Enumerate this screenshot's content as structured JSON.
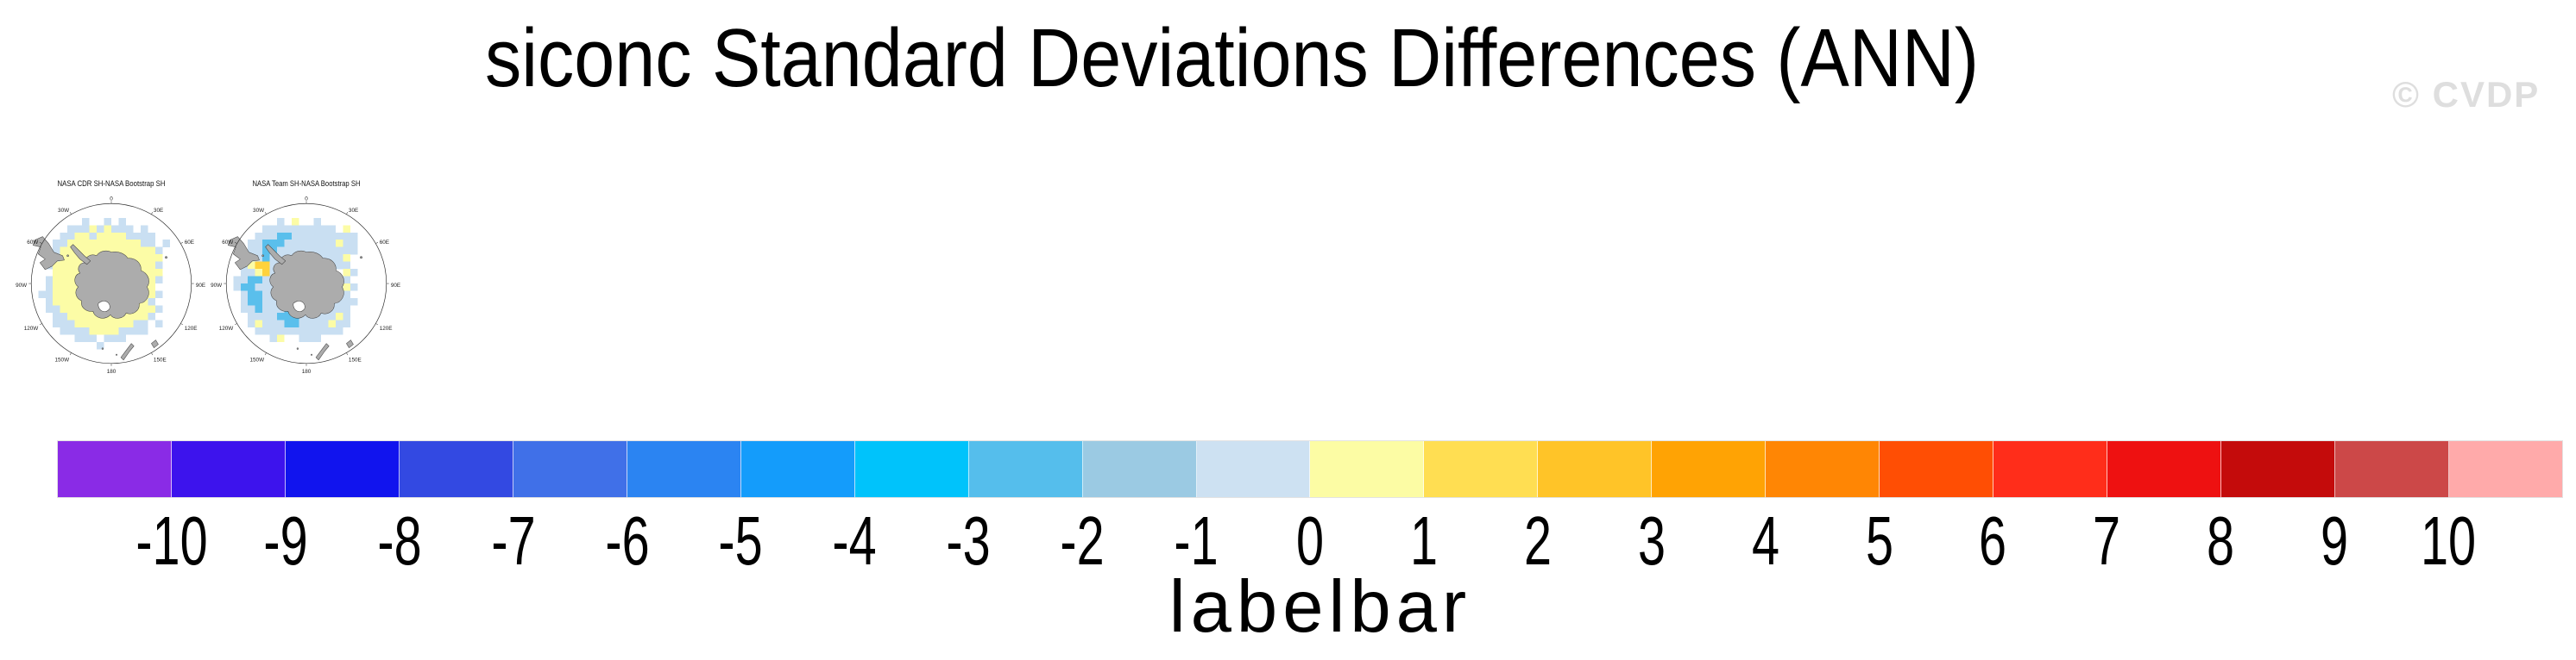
{
  "page": {
    "title": "siconc Standard Deviations Differences (ANN)",
    "watermark": "© CVDP",
    "background": "#ffffff"
  },
  "maps": [
    {
      "title": "NASA CDR SH-NASA Bootstrap SH",
      "lon_labels": [
        "0",
        "30E",
        "60E",
        "90E",
        "120E",
        "150E",
        "180",
        "150W",
        "120W",
        "90W",
        "60W",
        "30W"
      ],
      "grid": [
        "....................",
        "......p..p.p........",
        "....pppypyppp.p.....",
        "...ppyypyyyypppp....",
        "..ppyyyyyyyyyypp.p..",
        "..pyyyyyyyyyyyyyp...",
        ".ppyyyyyyyyyyyyyy...",
        ".pyyyy.yyyyyyyyyp...",
        "..yyyyyyyyyyyyyyy...",
        ".pyyyyyyyyyyyyyyp...",
        ".pyyyyyyyyyyyyyy....",
        "ppyyyyyyyyyyyyyyp...",
        ".pyyyyyyyyyyyyyp....",
        ".ppyyyyyyyyyyyyyp...",
        "..ppyyyyyyyyyyyp....",
        "..pppyyyyyyyypp.p...",
        "...ppppyyyypppp.....",
        ".....ppp.ppp........",
        "........p...........",
        "...................."
      ]
    },
    {
      "title": "NASA Team SH-NASA Bootstrap SH",
      "lon_labels": [
        "0",
        "30E",
        "60E",
        "90E",
        "120E",
        "150E",
        "180",
        "150W",
        "120W",
        "90W",
        "60W",
        "30W"
      ],
      "grid": [
        "....................",
        "......p.y..p........",
        "....pppppppppp.y....",
        "...pppmmppppppppp...",
        "..ppmmmpppppppypp...",
        "..ppmmppppppppppp...",
        ".pppmppppppppppy....",
        ".pyggppppppppppp....",
        ".ppygppppppppp.yp...",
        "ppmmpppppppppppp....",
        "pmmppppppppppppyp...",
        ".pmmpppppppppppp....",
        ".pmmppppppppppppp...",
        ".ppmpppmmppppppp....",
        "..ppppmmmpppppyp....",
        "..pypppmmppppypp....",
        "...pppppppppppp.....",
        ".....py..ppp........",
        "....................",
        "...................."
      ]
    }
  ],
  "map_style": {
    "land_color": "#acacac",
    "coast_color": "#3c3c3c",
    "circle_color": "#333333",
    "label_color": "#222222",
    "cell_colors": {
      "p": "#C9DFF2",
      "m": "#5ABFEC",
      "y": "#FCFCA6",
      "g": "#FFD23C",
      "o": "#FFA304"
    }
  },
  "colorbar": {
    "label": "labelbar",
    "ticks": [
      "-10",
      "-9",
      "-8",
      "-7",
      "-6",
      "-5",
      "-4",
      "-3",
      "-2",
      "-1",
      "0",
      "1",
      "2",
      "3",
      "4",
      "5",
      "6",
      "7",
      "8",
      "9",
      "10"
    ],
    "colors": [
      "#8A2BE6",
      "#3D13ED",
      "#1114EE",
      "#3349E2",
      "#4070E8",
      "#2B84F2",
      "#149CFB",
      "#00C3FB",
      "#55BEEC",
      "#9BCAE3",
      "#CDE1F2",
      "#FCFCA4",
      "#FFDE52",
      "#FFC428",
      "#FFA304",
      "#FF8604",
      "#FF4E04",
      "#FF2D1A",
      "#EE1111",
      "#C40B0B",
      "#CC4848",
      "#FFAAAA"
    ]
  },
  "chart_data": {
    "type": "heatmap",
    "title": "siconc Standard Deviations Differences (ANN)",
    "variable": "siconc",
    "statistic": "Standard Deviations Differences",
    "season": "ANN",
    "panels": [
      {
        "title": "NASA CDR SH-NASA Bootstrap SH",
        "projection": "south polar stereographic",
        "summary": "pale-yellow (0 to +1) differences ringing the Antarctic coast with pale-blue (-1 to 0) cells on the outer sea-ice fringe"
      },
      {
        "title": "NASA Team SH-NASA Bootstrap SH",
        "projection": "south polar stereographic",
        "summary": "mostly pale-blue (-1 to 0) differences with medium-blue (-3 to -2) patches west and south of the continent and scattered yellow/gold (+1 to +3) cells near the peninsula"
      }
    ],
    "colorbar": {
      "label": "labelbar",
      "tick_values": [
        -10,
        -9,
        -8,
        -7,
        -6,
        -5,
        -4,
        -3,
        -2,
        -1,
        0,
        1,
        2,
        3,
        4,
        5,
        6,
        7,
        8,
        9,
        10
      ],
      "n_colors": 22,
      "orientation": "horizontal",
      "legend_position": "bottom"
    }
  }
}
